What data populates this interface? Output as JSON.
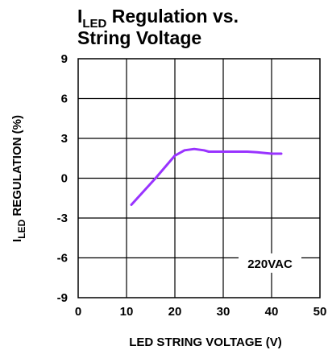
{
  "chart_data": {
    "type": "line",
    "title_prefix": "I",
    "title_subscript": "LED",
    "title_line1_rest": " Regulation vs.",
    "title_line2": "String Voltage",
    "xlabel": "LED  STRING VOLTAGE (V)",
    "ylabel_prefix": "I",
    "ylabel_subscript": "LED",
    "ylabel_rest": " REGULATION (%)",
    "xlim": [
      0,
      50
    ],
    "ylim": [
      -9,
      9
    ],
    "x_ticks": [
      "0",
      "10",
      "20",
      "30",
      "40",
      "50"
    ],
    "y_ticks": [
      "9",
      "6",
      "3",
      "0",
      "-3",
      "-6",
      "-9"
    ],
    "grid": true,
    "annotation": "220VAC",
    "series": [
      {
        "color": "#9933ff",
        "x": [
          11,
          16,
          20,
          22,
          24,
          26,
          27,
          30,
          33,
          35,
          37,
          40,
          42
        ],
        "y": [
          -2,
          0,
          1.7,
          2.1,
          2.2,
          2.1,
          2.0,
          2.0,
          2.0,
          2.0,
          1.95,
          1.85,
          1.85
        ]
      }
    ]
  }
}
